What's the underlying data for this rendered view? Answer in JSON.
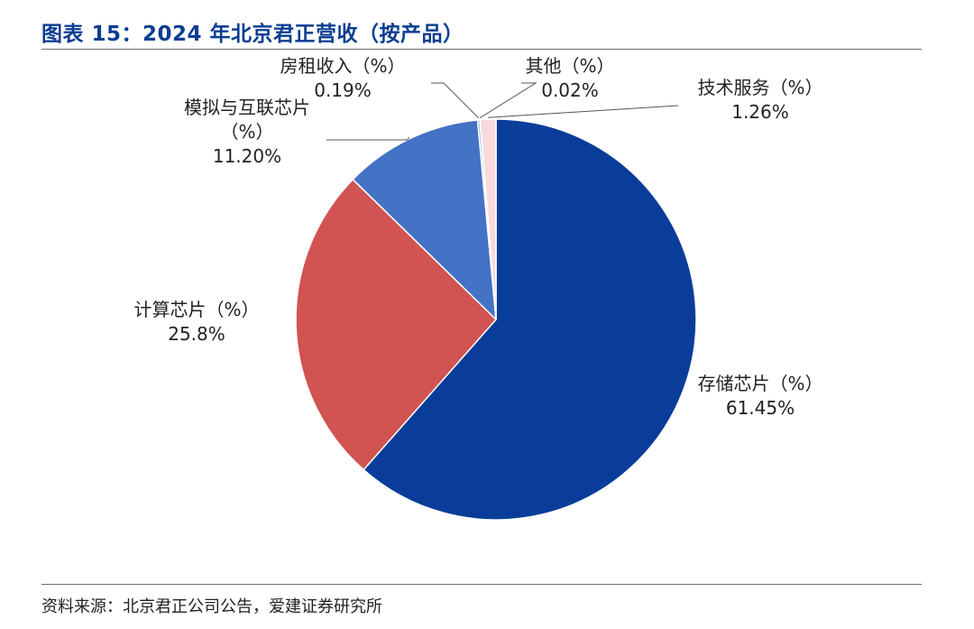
{
  "title": "图表 15：2024 年北京君正营收（按产品）",
  "source": "资料来源：北京君正公司公告，爱建证券研究所",
  "chart_data": {
    "type": "pie",
    "start_angle_deg": 90,
    "direction": "clockwise",
    "slices": [
      {
        "name": "存储芯片",
        "unit": "（%）",
        "value": 61.45,
        "display": "61.45%",
        "color": "#0a3d99"
      },
      {
        "name": "计算芯片",
        "unit": "（%）",
        "value": 25.8,
        "display": "25.8%",
        "color": "#d15352"
      },
      {
        "name": "模拟与互联芯片",
        "unit": "（%）",
        "value": 11.2,
        "display": "11.20%",
        "color": "#4472c4"
      },
      {
        "name": "房租收入",
        "unit": "（%）",
        "value": 0.19,
        "display": "0.19%",
        "color": "#9dc3e6"
      },
      {
        "name": "其他",
        "unit": "（%）",
        "value": 0.02,
        "display": "0.02%",
        "color": "#a5a5a5"
      },
      {
        "name": "技术服务",
        "unit": "（%）",
        "value": 1.26,
        "display": "1.26%",
        "color": "#f8d9dc"
      }
    ]
  }
}
